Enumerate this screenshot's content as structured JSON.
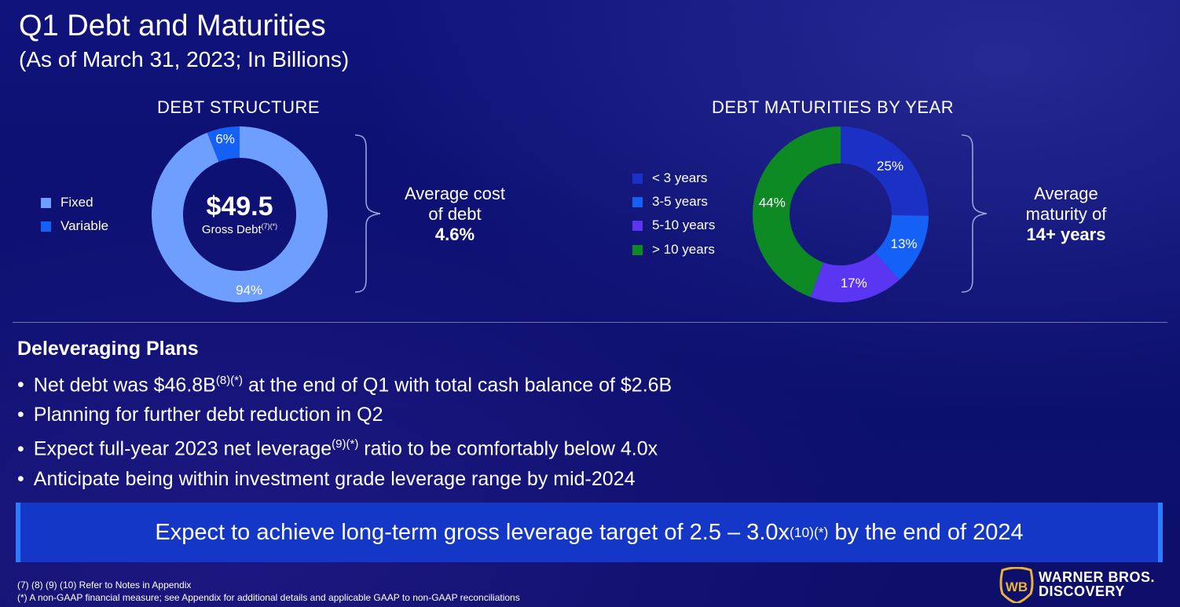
{
  "header": {
    "title": "Q1 Debt and Maturities",
    "subtitle": "(As of March 31, 2023; In Billions)"
  },
  "chart_data": [
    {
      "type": "pie",
      "title": "DEBT STRUCTURE",
      "donut": true,
      "categories": [
        "Fixed",
        "Variable"
      ],
      "values": [
        94,
        6
      ],
      "labels": [
        "94%",
        "6%"
      ],
      "colors": [
        "#6e9fff",
        "#1560f5"
      ],
      "legend_position": "left",
      "center": {
        "amount": "$49.5",
        "label": "Gross Debt",
        "sup": "(7)(*)"
      }
    },
    {
      "type": "pie",
      "title": "DEBT MATURITIES BY YEAR",
      "donut": true,
      "categories": [
        "< 3 years",
        "3-5 years",
        "5-10 years",
        "> 10 years"
      ],
      "values": [
        25,
        13,
        17,
        44
      ],
      "labels": [
        "25%",
        "13%",
        "17%",
        "44%"
      ],
      "colors": [
        "#1b30c4",
        "#1560f5",
        "#5a35f2",
        "#0e8a24"
      ],
      "legend_position": "left"
    }
  ],
  "callouts": {
    "cost": {
      "line1": "Average cost",
      "line2": "of debt",
      "value": "4.6%"
    },
    "maturity": {
      "line1": "Average",
      "line2": "maturity of",
      "value": "14+ years"
    }
  },
  "plans": {
    "heading": "Deleveraging Plans",
    "bullets": [
      {
        "pre": "Net debt was $46.8B",
        "sup": "(8)(*)",
        "post": " at the end of Q1 with total cash balance of $2.6B"
      },
      {
        "pre": "Planning for further debt reduction in Q2",
        "sup": "",
        "post": ""
      },
      {
        "pre": "Expect full-year 2023 net leverage",
        "sup": "(9)(*)",
        "post": " ratio to be comfortably below 4.0x"
      },
      {
        "pre": "Anticipate being within investment grade leverage range by mid-2024",
        "sup": "",
        "post": ""
      }
    ]
  },
  "banner": {
    "pre": "Expect to achieve long-term gross leverage target of 2.5 – 3.0x",
    "sup": "(10)(*)",
    "post": " by the end of 2024"
  },
  "footnotes": {
    "line1": "(7) (8) (9) (10) Refer to Notes in Appendix",
    "line2": "(*) A non-GAAP financial measure; see Appendix for additional details and applicable GAAP to non-GAAP reconciliations"
  },
  "brand": {
    "line1": "WARNER BROS.",
    "line2": "DISCOVERY",
    "logo_letters": "WB",
    "logo_color": "#e8b33a"
  }
}
